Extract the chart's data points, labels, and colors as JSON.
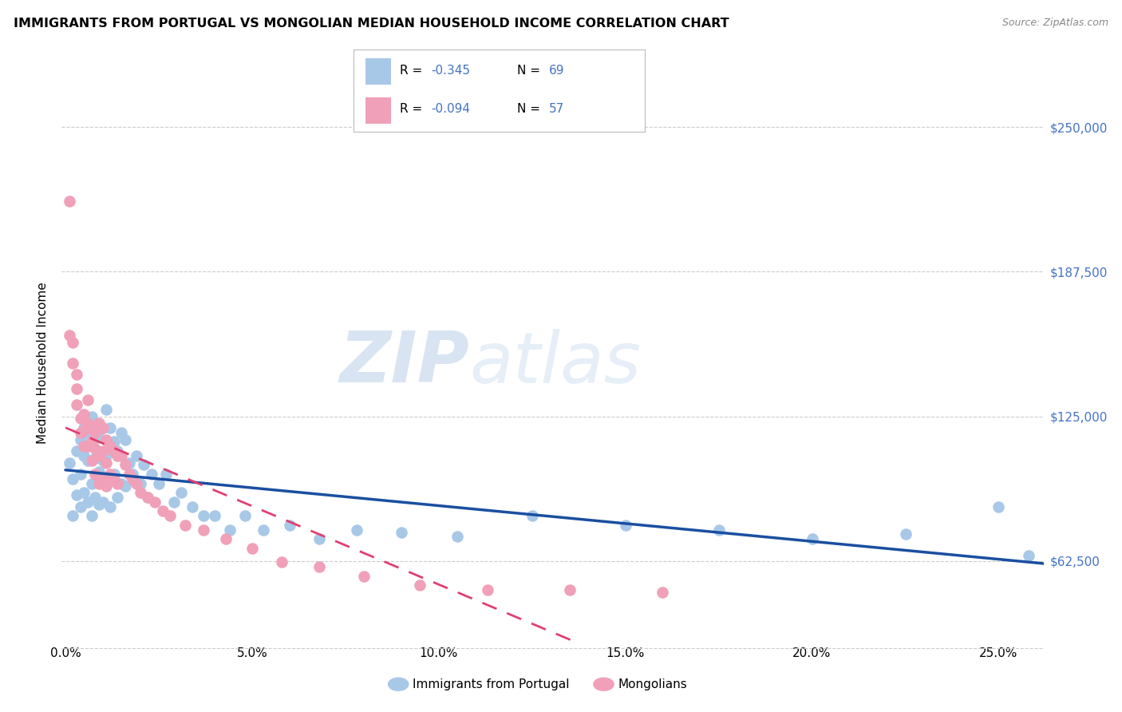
{
  "title": "IMMIGRANTS FROM PORTUGAL VS MONGOLIAN MEDIAN HOUSEHOLD INCOME CORRELATION CHART",
  "source": "Source: ZipAtlas.com",
  "ylabel": "Median Household Income",
  "ytick_labels": [
    "$62,500",
    "$125,000",
    "$187,500",
    "$250,000"
  ],
  "ytick_values": [
    62500,
    125000,
    187500,
    250000
  ],
  "ymin": 28000,
  "ymax": 268000,
  "xmin": -0.001,
  "xmax": 0.262,
  "xtick_positions": [
    0.0,
    0.05,
    0.1,
    0.15,
    0.2,
    0.25
  ],
  "xtick_labels": [
    "0.0%",
    "5.0%",
    "10.0%",
    "15.0%",
    "20.0%",
    "25.0%"
  ],
  "watermark_zip": "ZIP",
  "watermark_atlas": "atlas",
  "portugal_color": "#a8c8e8",
  "mongolian_color": "#f0a0b8",
  "portugal_line_color": "#1a4fa0",
  "mongolian_line_color": "#e04070",
  "grid_color": "#cccccc",
  "background_color": "#ffffff",
  "rn_color": "#4472c4",
  "legend_title_1": "Immigrants from Portugal",
  "legend_title_2": "Mongolians",
  "portugal_R": -0.345,
  "mongolian_R": -0.094,
  "portugal_N": 69,
  "mongolian_N": 57,
  "portugal_x": [
    0.001,
    0.002,
    0.002,
    0.003,
    0.003,
    0.004,
    0.004,
    0.004,
    0.005,
    0.005,
    0.005,
    0.006,
    0.006,
    0.006,
    0.007,
    0.007,
    0.007,
    0.007,
    0.008,
    0.008,
    0.008,
    0.009,
    0.009,
    0.009,
    0.01,
    0.01,
    0.01,
    0.011,
    0.011,
    0.012,
    0.012,
    0.012,
    0.013,
    0.013,
    0.014,
    0.014,
    0.015,
    0.015,
    0.016,
    0.016,
    0.017,
    0.018,
    0.019,
    0.02,
    0.021,
    0.022,
    0.023,
    0.025,
    0.027,
    0.029,
    0.031,
    0.034,
    0.037,
    0.04,
    0.044,
    0.048,
    0.053,
    0.06,
    0.068,
    0.078,
    0.09,
    0.105,
    0.125,
    0.15,
    0.175,
    0.2,
    0.225,
    0.25,
    0.258
  ],
  "portugal_y": [
    105000,
    98000,
    82000,
    110000,
    91000,
    115000,
    100000,
    86000,
    120000,
    108000,
    92000,
    118000,
    106000,
    88000,
    125000,
    113000,
    96000,
    82000,
    122000,
    107000,
    90000,
    116000,
    101000,
    87000,
    120000,
    106000,
    88000,
    128000,
    108000,
    120000,
    98000,
    86000,
    114000,
    100000,
    110000,
    90000,
    118000,
    96000,
    115000,
    95000,
    105000,
    100000,
    108000,
    96000,
    104000,
    90000,
    100000,
    96000,
    100000,
    88000,
    92000,
    86000,
    82000,
    82000,
    76000,
    82000,
    76000,
    78000,
    72000,
    76000,
    75000,
    73000,
    82000,
    78000,
    76000,
    72000,
    74000,
    86000,
    65000
  ],
  "mongolian_x": [
    0.001,
    0.001,
    0.002,
    0.002,
    0.003,
    0.003,
    0.003,
    0.004,
    0.004,
    0.005,
    0.005,
    0.005,
    0.006,
    0.006,
    0.006,
    0.007,
    0.007,
    0.007,
    0.008,
    0.008,
    0.008,
    0.009,
    0.009,
    0.009,
    0.01,
    0.01,
    0.01,
    0.011,
    0.011,
    0.011,
    0.012,
    0.012,
    0.013,
    0.013,
    0.014,
    0.014,
    0.015,
    0.016,
    0.017,
    0.018,
    0.019,
    0.02,
    0.022,
    0.024,
    0.026,
    0.028,
    0.032,
    0.037,
    0.043,
    0.05,
    0.058,
    0.068,
    0.08,
    0.095,
    0.113,
    0.135,
    0.16
  ],
  "mongolian_y": [
    218000,
    160000,
    157000,
    148000,
    143000,
    137000,
    130000,
    124000,
    118000,
    126000,
    119000,
    112000,
    132000,
    122000,
    112000,
    120000,
    114000,
    106000,
    118000,
    111000,
    100000,
    122000,
    108000,
    96000,
    120000,
    110000,
    98000,
    115000,
    105000,
    95000,
    112000,
    100000,
    110000,
    98000,
    108000,
    96000,
    108000,
    104000,
    100000,
    98000,
    96000,
    92000,
    90000,
    88000,
    84000,
    82000,
    78000,
    76000,
    72000,
    68000,
    62000,
    60000,
    56000,
    52000,
    50000,
    50000,
    49000
  ]
}
